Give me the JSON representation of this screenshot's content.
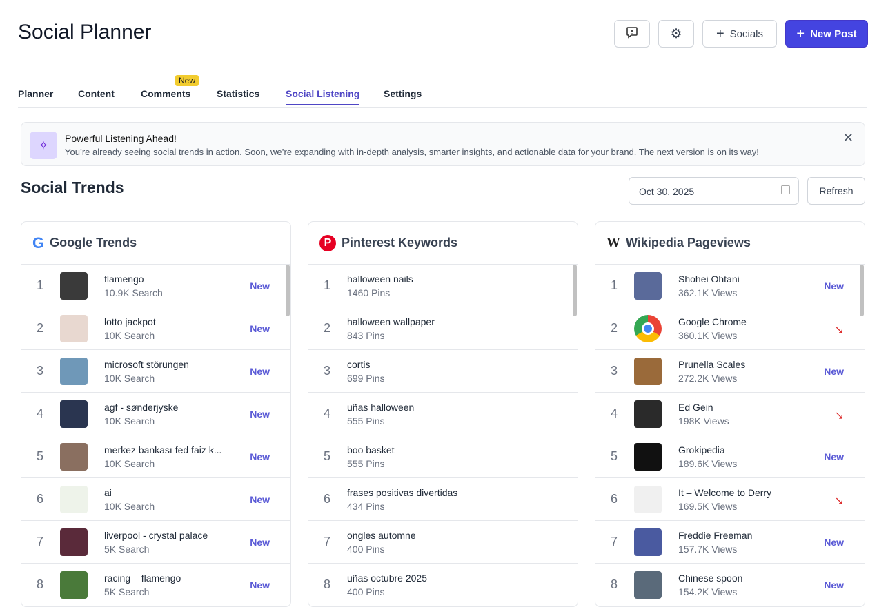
{
  "app": {
    "title": "Social Planner"
  },
  "toolbar": {
    "feedback_icon": "message-alert-icon",
    "settings_icon": "gear-icon",
    "socials_label": "Socials",
    "new_post_label": "New Post"
  },
  "tabs": [
    {
      "label": "Planner"
    },
    {
      "label": "Content"
    },
    {
      "label": "Comments",
      "badge": "New"
    },
    {
      "label": "Statistics"
    },
    {
      "label": "Social Listening",
      "active": true
    },
    {
      "label": "Settings"
    }
  ],
  "banner": {
    "title": "Powerful Listening Ahead!",
    "text": "You’re already seeing social trends in action. Soon, we’re expanding with in-depth analysis, smarter insights, and actionable data for your brand. The next version is on its way!"
  },
  "section": {
    "title": "Social Trends",
    "date": "Oct 30, 2025",
    "refresh_label": "Refresh"
  },
  "colors": {
    "accent": "#4444e0",
    "new": "#5b5bd6",
    "down": "#dc2626"
  },
  "google": {
    "title": "Google Trends",
    "items": [
      {
        "rank": "1",
        "name": "flamengo",
        "sub": "10.9K Search",
        "status": "New",
        "thumb": "#3a3a3a"
      },
      {
        "rank": "2",
        "name": "lotto jackpot",
        "sub": "10K Search",
        "status": "New",
        "thumb": "#e8d8d0"
      },
      {
        "rank": "3",
        "name": "microsoft störungen",
        "sub": "10K Search",
        "status": "New",
        "thumb": "#6f98b8"
      },
      {
        "rank": "4",
        "name": "agf - sønderjyske",
        "sub": "10K Search",
        "status": "New",
        "thumb": "#2a3550"
      },
      {
        "rank": "5",
        "name": "merkez bankası fed faiz k...",
        "sub": "10K Search",
        "status": "New",
        "thumb": "#8a6f60"
      },
      {
        "rank": "6",
        "name": "ai",
        "sub": "10K Search",
        "status": "New",
        "thumb": "#eef3ea"
      },
      {
        "rank": "7",
        "name": "liverpool - crystal palace",
        "sub": "5K Search",
        "status": "New",
        "thumb": "#5a2a3a"
      },
      {
        "rank": "8",
        "name": "racing – flamengo",
        "sub": "5K Search",
        "status": "New",
        "thumb": "#4a7a3a"
      }
    ]
  },
  "pinterest": {
    "title": "Pinterest Keywords",
    "items": [
      {
        "rank": "1",
        "name": "halloween nails",
        "sub": "1460 Pins"
      },
      {
        "rank": "2",
        "name": "halloween wallpaper",
        "sub": "843 Pins"
      },
      {
        "rank": "3",
        "name": "cortis",
        "sub": "699 Pins"
      },
      {
        "rank": "4",
        "name": "uñas halloween",
        "sub": "555 Pins"
      },
      {
        "rank": "5",
        "name": "boo basket",
        "sub": "555 Pins"
      },
      {
        "rank": "6",
        "name": "frases positivas divertidas",
        "sub": "434 Pins"
      },
      {
        "rank": "7",
        "name": "ongles automne",
        "sub": "400 Pins"
      },
      {
        "rank": "8",
        "name": "uñas octubre 2025",
        "sub": "400 Pins"
      }
    ]
  },
  "wikipedia": {
    "title": "Wikipedia Pageviews",
    "items": [
      {
        "rank": "1",
        "name": "Shohei Ohtani",
        "sub": "362.1K Views",
        "status": "New",
        "thumb": "#5a6a9a"
      },
      {
        "rank": "2",
        "name": "Google Chrome",
        "sub": "360.1K Views",
        "status": "down",
        "thumb": "chrome"
      },
      {
        "rank": "3",
        "name": "Prunella Scales",
        "sub": "272.2K Views",
        "status": "New",
        "thumb": "#9a6a3a"
      },
      {
        "rank": "4",
        "name": "Ed Gein",
        "sub": "198K Views",
        "status": "down",
        "thumb": "#2a2a2a"
      },
      {
        "rank": "5",
        "name": "Grokipedia",
        "sub": "189.6K Views",
        "status": "New",
        "thumb": "#111111"
      },
      {
        "rank": "6",
        "name": "It – Welcome to Derry",
        "sub": "169.5K Views",
        "status": "down",
        "thumb": "#f0f0f0"
      },
      {
        "rank": "7",
        "name": "Freddie Freeman",
        "sub": "157.7K Views",
        "status": "New",
        "thumb": "#4a5aa0"
      },
      {
        "rank": "8",
        "name": "Chinese spoon",
        "sub": "154.2K Views",
        "status": "New",
        "thumb": "#5a6a7a"
      }
    ]
  }
}
